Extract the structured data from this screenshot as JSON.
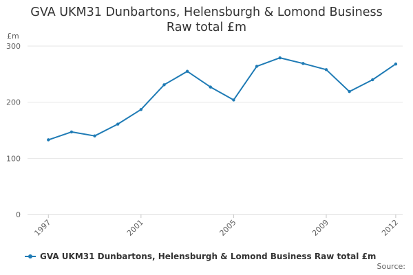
{
  "chart_data": {
    "type": "line",
    "title": "GVA UKM31 Dunbartons, Helensburgh & Lomond Business",
    "subtitle": "Raw total £m",
    "ylabel": "£m",
    "xlabel": "",
    "ylim": [
      0,
      300
    ],
    "yticks": [
      0,
      100,
      200,
      300
    ],
    "xticks": [
      1997,
      2001,
      2005,
      2009,
      2012
    ],
    "grid": true,
    "legend_position": "bottom-left",
    "series": [
      {
        "name": "GVA UKM31 Dunbartons, Helensburgh & Lomond Business Raw total £m",
        "color": "#1f7bb5",
        "x": [
          1997,
          1998,
          1999,
          2000,
          2001,
          2002,
          2003,
          2004,
          2005,
          2006,
          2007,
          2008,
          2009,
          2010,
          2011,
          2012
        ],
        "y": [
          133,
          147,
          140,
          161,
          187,
          231,
          255,
          227,
          204,
          264,
          279,
          269,
          258,
          219,
          240,
          268
        ]
      }
    ]
  },
  "footer": {
    "source_label": "Source:"
  }
}
